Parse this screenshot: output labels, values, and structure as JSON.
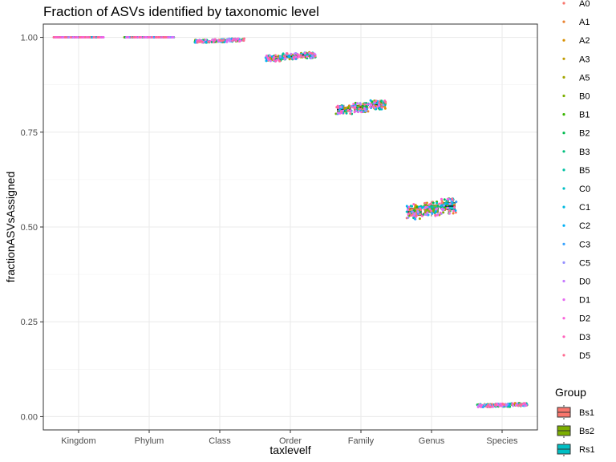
{
  "chart_data": {
    "type": "scatter",
    "title": "Fraction of ASVs identified by taxonomic level",
    "xlabel": "taxlevelf",
    "ylabel": "fractionASVsAssigned",
    "categories": [
      "Kingdom",
      "Phylum",
      "Class",
      "Order",
      "Family",
      "Genus",
      "Species"
    ],
    "ylim": [
      -0.035,
      1.035
    ],
    "yticks": [
      0.0,
      0.25,
      0.5,
      0.75,
      1.0
    ],
    "ytick_labels": [
      "0.00",
      "0.25",
      "0.50",
      "0.75",
      "1.00"
    ],
    "grid": true,
    "points_per_sample": 3,
    "samples": [
      {
        "name": "A0",
        "color": "#F8766D"
      },
      {
        "name": "A1",
        "color": "#EA8331"
      },
      {
        "name": "A2",
        "color": "#D89000"
      },
      {
        "name": "A3",
        "color": "#C09B00"
      },
      {
        "name": "A5",
        "color": "#A3A500"
      },
      {
        "name": "B0",
        "color": "#7CAE00"
      },
      {
        "name": "B1",
        "color": "#39B600"
      },
      {
        "name": "B2",
        "color": "#00BB4E"
      },
      {
        "name": "B3",
        "color": "#00BF7D"
      },
      {
        "name": "B5",
        "color": "#00C1A3"
      },
      {
        "name": "C0",
        "color": "#00BFC4"
      },
      {
        "name": "C1",
        "color": "#00BAE0"
      },
      {
        "name": "C2",
        "color": "#00B0F6"
      },
      {
        "name": "C3",
        "color": "#35A2FF"
      },
      {
        "name": "C5",
        "color": "#9590FF"
      },
      {
        "name": "D0",
        "color": "#C77CFF"
      },
      {
        "name": "D1",
        "color": "#E76BF3"
      },
      {
        "name": "D2",
        "color": "#FA62DB"
      },
      {
        "name": "D3",
        "color": "#FF62BC"
      },
      {
        "name": "D5",
        "color": "#FF6C91"
      }
    ],
    "groups": [
      {
        "name": "Bs1",
        "color": "#F8766D",
        "values": [
          1.0,
          1.0,
          0.99,
          0.945,
          0.81,
          0.54,
          0.029
        ]
      },
      {
        "name": "Bs2",
        "color": "#7CAE00",
        "values": [
          1.0,
          1.0,
          0.991,
          0.95,
          0.815,
          0.548,
          0.03
        ]
      },
      {
        "name": "Rs1",
        "color": "#00BFC4",
        "values": [
          1.0,
          1.0,
          0.993,
          0.953,
          0.822,
          0.555,
          0.032
        ]
      }
    ],
    "spread": [
      0.0,
      0.0,
      0.004,
      0.008,
      0.012,
      0.02,
      0.004
    ],
    "legend": {
      "position": "right",
      "group_title": "Group"
    }
  }
}
